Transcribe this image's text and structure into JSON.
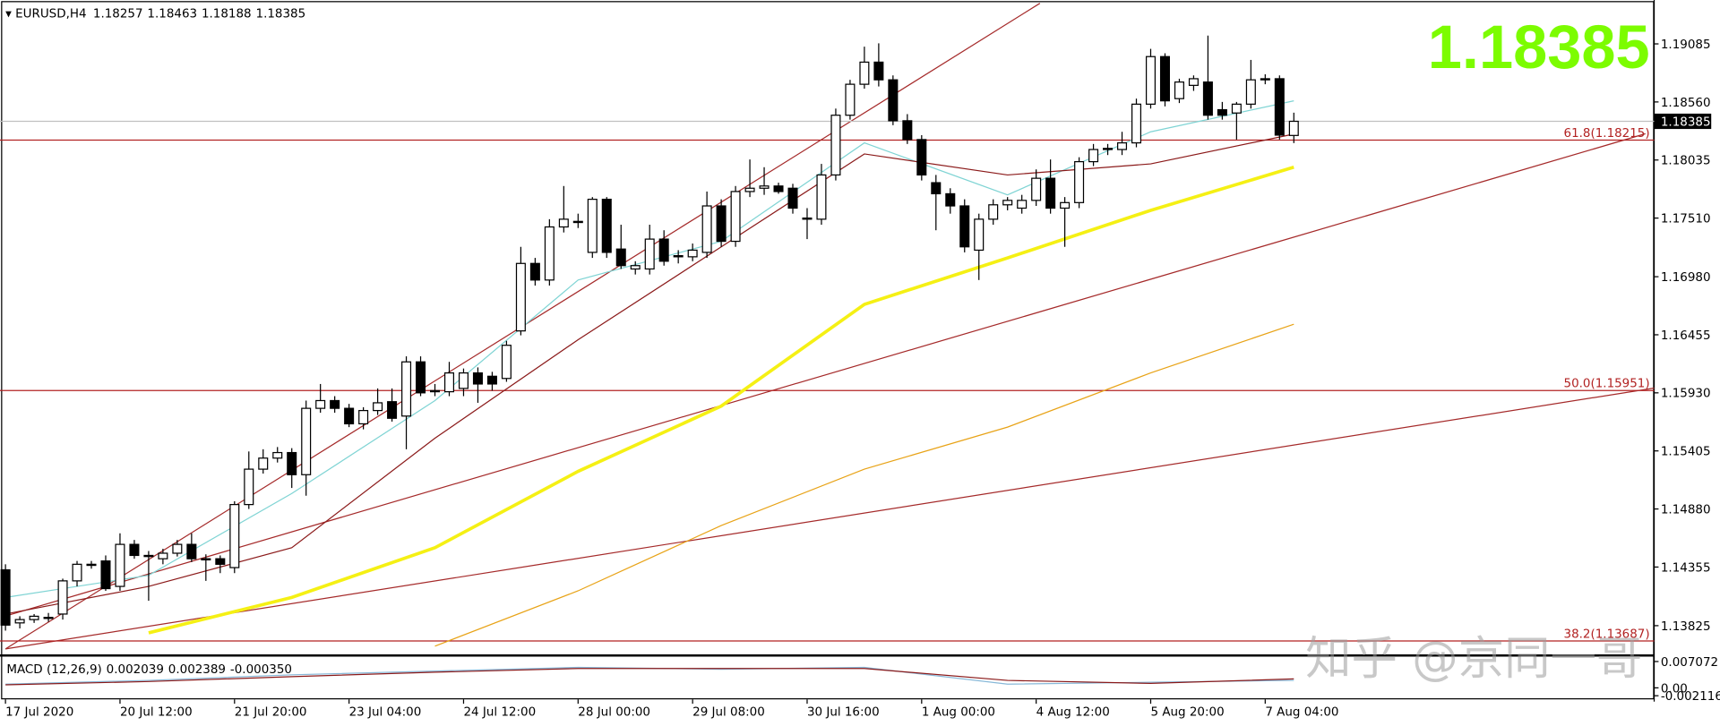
{
  "chart_data": {
    "type": "candlestick",
    "header": {
      "symbol": "EURUSD,H4"
    },
    "categories": [
      "17 Jul 2020",
      null,
      null,
      null,
      null,
      null,
      null,
      null,
      "20 Jul 12:00",
      null,
      null,
      null,
      null,
      null,
      null,
      null,
      "21 Jul 20:00",
      null,
      null,
      null,
      null,
      null,
      null,
      null,
      "23 Jul 04:00",
      null,
      null,
      null,
      null,
      null,
      null,
      null,
      "24 Jul 12:00",
      null,
      null,
      null,
      null,
      null,
      null,
      null,
      "28 Jul 00:00",
      null,
      null,
      null,
      null,
      null,
      null,
      null,
      "29 Jul 08:00",
      null,
      null,
      null,
      null,
      null,
      null,
      null,
      "30 Jul 16:00",
      null,
      null,
      null,
      null,
      null,
      null,
      null,
      "1 Aug 00:00",
      null,
      null,
      null,
      null,
      null,
      null,
      null,
      "4 Aug 12:00",
      null,
      null,
      null,
      null,
      null,
      null,
      null,
      "5 Aug 20:00",
      null,
      null,
      null,
      null,
      null,
      null,
      null,
      "7 Aug 04:00",
      null,
      null
    ],
    "candles": [
      [
        1.1433,
        1.1438,
        1.1378,
        1.1383
      ],
      [
        1.1385,
        1.1391,
        1.138,
        1.1388
      ],
      [
        1.1388,
        1.1393,
        1.1385,
        1.1391
      ],
      [
        1.139,
        1.1394,
        1.1386,
        1.139
      ],
      [
        1.1393,
        1.1425,
        1.1388,
        1.1423
      ],
      [
        1.1423,
        1.1441,
        1.1418,
        1.1438
      ],
      [
        1.1438,
        1.1441,
        1.1434,
        1.1437
      ],
      [
        1.1441,
        1.1446,
        1.1414,
        1.1416
      ],
      [
        1.1418,
        1.1466,
        1.1414,
        1.1456
      ],
      [
        1.1456,
        1.146,
        1.1443,
        1.1446
      ],
      [
        1.1446,
        1.145,
        1.1405,
        1.1445
      ],
      [
        1.1443,
        1.1452,
        1.1438,
        1.1448
      ],
      [
        1.1448,
        1.146,
        1.1445,
        1.1456
      ],
      [
        1.1456,
        1.1466,
        1.144,
        1.1443
      ],
      [
        1.1443,
        1.1447,
        1.1423,
        1.1442
      ],
      [
        1.1443,
        1.1446,
        1.143,
        1.1438
      ],
      [
        1.1435,
        1.1495,
        1.143,
        1.1492
      ],
      [
        1.1492,
        1.154,
        1.1488,
        1.1524
      ],
      [
        1.1524,
        1.1542,
        1.152,
        1.1534
      ],
      [
        1.1534,
        1.1544,
        1.153,
        1.1539
      ],
      [
        1.1539,
        1.1543,
        1.1507,
        1.1519
      ],
      [
        1.1519,
        1.1586,
        1.15,
        1.1579
      ],
      [
        1.1579,
        1.1601,
        1.1575,
        1.1586
      ],
      [
        1.1586,
        1.159,
        1.1575,
        1.1579
      ],
      [
        1.1579,
        1.1583,
        1.1562,
        1.1565
      ],
      [
        1.1565,
        1.158,
        1.156,
        1.1577
      ],
      [
        1.1577,
        1.1597,
        1.1573,
        1.1584
      ],
      [
        1.1585,
        1.1597,
        1.1567,
        1.157
      ],
      [
        1.1572,
        1.1626,
        1.1542,
        1.1621
      ],
      [
        1.1621,
        1.1626,
        1.159,
        1.1593
      ],
      [
        1.1594,
        1.1601,
        1.159,
        1.1595
      ],
      [
        1.1594,
        1.1621,
        1.159,
        1.1611
      ],
      [
        1.1597,
        1.1615,
        1.159,
        1.1611
      ],
      [
        1.1611,
        1.1616,
        1.1584,
        1.1601
      ],
      [
        1.1608,
        1.1612,
        1.1595,
        1.1601
      ],
      [
        1.1606,
        1.164,
        1.1603,
        1.1636
      ],
      [
        1.1649,
        1.1725,
        1.1645,
        1.171
      ],
      [
        1.171,
        1.1715,
        1.169,
        1.1695
      ],
      [
        1.1695,
        1.175,
        1.169,
        1.1743
      ],
      [
        1.1743,
        1.178,
        1.1738,
        1.175
      ],
      [
        1.1747,
        1.1755,
        1.1742,
        1.1748
      ],
      [
        1.172,
        1.177,
        1.1715,
        1.1768
      ],
      [
        1.1768,
        1.177,
        1.1715,
        1.172
      ],
      [
        1.1723,
        1.1745,
        1.1705,
        1.1708
      ],
      [
        1.1705,
        1.1712,
        1.17,
        1.1708
      ],
      [
        1.1705,
        1.1745,
        1.17,
        1.1732
      ],
      [
        1.1732,
        1.174,
        1.1708,
        1.1712
      ],
      [
        1.1716,
        1.1722,
        1.171,
        1.1717
      ],
      [
        1.1716,
        1.1728,
        1.1712,
        1.1722
      ],
      [
        1.172,
        1.1775,
        1.1715,
        1.1762
      ],
      [
        1.1762,
        1.1768,
        1.1725,
        1.173
      ],
      [
        1.173,
        1.178,
        1.1725,
        1.1775
      ],
      [
        1.1775,
        1.1804,
        1.177,
        1.1778
      ],
      [
        1.1778,
        1.1797,
        1.1772,
        1.178
      ],
      [
        1.178,
        1.1783,
        1.1773,
        1.1775
      ],
      [
        1.1778,
        1.1782,
        1.1755,
        1.176
      ],
      [
        1.175,
        1.176,
        1.1732,
        1.1751
      ],
      [
        1.175,
        1.18,
        1.1745,
        1.179
      ],
      [
        1.179,
        1.185,
        1.1785,
        1.1844
      ],
      [
        1.1844,
        1.1876,
        1.184,
        1.1872
      ],
      [
        1.1872,
        1.1906,
        1.1868,
        1.1892
      ],
      [
        1.1892,
        1.1909,
        1.187,
        1.1876
      ],
      [
        1.1876,
        1.188,
        1.1835,
        1.1839
      ],
      [
        1.1839,
        1.1845,
        1.1818,
        1.1822
      ],
      [
        1.1822,
        1.1826,
        1.1785,
        1.179
      ],
      [
        1.1783,
        1.179,
        1.174,
        1.1773
      ],
      [
        1.1773,
        1.1778,
        1.1755,
        1.1762
      ],
      [
        1.1762,
        1.1768,
        1.172,
        1.1725
      ],
      [
        1.1722,
        1.1755,
        1.1695,
        1.175
      ],
      [
        1.175,
        1.1768,
        1.1745,
        1.1763
      ],
      [
        1.1763,
        1.177,
        1.1758,
        1.1767
      ],
      [
        1.176,
        1.1772,
        1.1755,
        1.1767
      ],
      [
        1.1767,
        1.1795,
        1.1762,
        1.1787
      ],
      [
        1.1787,
        1.1804,
        1.1755,
        1.176
      ],
      [
        1.176,
        1.177,
        1.1725,
        1.1765
      ],
      [
        1.1765,
        1.1806,
        1.176,
        1.1802
      ],
      [
        1.1802,
        1.1818,
        1.1798,
        1.1813
      ],
      [
        1.1813,
        1.1818,
        1.1808,
        1.1814
      ],
      [
        1.1813,
        1.1829,
        1.1808,
        1.1819
      ],
      [
        1.1819,
        1.1859,
        1.1815,
        1.1854
      ],
      [
        1.1854,
        1.1904,
        1.185,
        1.1897
      ],
      [
        1.1897,
        1.19,
        1.1852,
        1.1857
      ],
      [
        1.1859,
        1.1877,
        1.1855,
        1.1874
      ],
      [
        1.1871,
        1.188,
        1.1866,
        1.1877
      ],
      [
        1.1874,
        1.1916,
        1.184,
        1.1844
      ],
      [
        1.1849,
        1.1856,
        1.184,
        1.1844
      ],
      [
        1.1846,
        1.1856,
        1.1822,
        1.1854
      ],
      [
        1.1854,
        1.1894,
        1.185,
        1.1876
      ],
      [
        1.1876,
        1.1881,
        1.1872,
        1.1877
      ],
      [
        1.1877,
        1.188,
        1.1822,
        1.1826
      ],
      [
        1.18257,
        1.18463,
        1.18188,
        1.18385
      ]
    ],
    "bull_color": "#ffffff",
    "bear_color": "#000000",
    "overlays": [
      {
        "color": "#7fd4d4",
        "width": 1,
        "x": [
          0,
          10,
          20,
          30,
          40,
          50,
          60,
          70,
          80,
          90
        ],
        "values": [
          1.1408,
          1.1428,
          1.1502,
          1.1586,
          1.1695,
          1.173,
          1.1819,
          1.1772,
          1.1829,
          1.1857
        ]
      },
      {
        "color": "#8b1a1a",
        "width": 1,
        "x": [
          0,
          10,
          20,
          30,
          40,
          50,
          60,
          70,
          80,
          90
        ],
        "values": [
          1.1393,
          1.1418,
          1.1453,
          1.1552,
          1.1641,
          1.1725,
          1.1809,
          1.179,
          1.18,
          1.1827
        ]
      },
      {
        "color": "#f5f014",
        "width": 3,
        "x": [
          10,
          20,
          30,
          40,
          50,
          60,
          70,
          80,
          90
        ],
        "values": [
          1.1376,
          1.1408,
          1.1453,
          1.1522,
          1.1581,
          1.1673,
          1.1715,
          1.1758,
          1.1797
        ]
      },
      {
        "color": "#e8a317",
        "width": 1,
        "x": [
          30,
          40,
          50,
          60,
          70,
          80,
          90
        ],
        "values": [
          1.1364,
          1.1414,
          1.1473,
          1.1524,
          1.1562,
          1.1611,
          1.1655
        ]
      }
    ],
    "ylim": [
      1.13565,
      1.19452
    ],
    "yticks": [
      1.19085,
      {
        "value": 1.1856,
        "label": "1.18560"
      },
      1.18035,
      {
        "value": 1.1751,
        "label": "1.17510"
      },
      {
        "value": 1.1698,
        "label": "1.16980"
      },
      1.16455,
      {
        "value": 1.1593,
        "label": "1.15930"
      },
      1.15405,
      {
        "value": 1.1488,
        "label": "1.14880"
      },
      1.14355,
      1.13825
    ],
    "fib_levels": [
      {
        "value": 1.18215,
        "label": "61.8(1.18215)"
      },
      {
        "value": 1.15951,
        "label": "50.0(1.15951)"
      },
      {
        "value": 1.13687,
        "label": "38.2(1.13687)"
      }
    ],
    "fib_color": "#b22222",
    "last_price": 1.18385,
    "macd": {
      "label": "MACD (12,26,9)",
      "readouts": [
        0.002039,
        0.002389,
        {
          "value": -0.00035,
          "label": "-0.000350"
        }
      ],
      "ylim": [
        -0.0028,
        0.0078
      ],
      "yticks": [
        0.007072,
        {
          "value": 0,
          "label": "0.00"
        },
        -0.002116
      ],
      "x": [
        0,
        10,
        20,
        30,
        40,
        50,
        60,
        70,
        80,
        90
      ],
      "series": [
        {
          "color": "#87b8d8",
          "values": [
            0.001,
            0.002,
            0.0035,
            0.0045,
            0.0055,
            0.005,
            0.0055,
            0.001,
            0.0015,
            0.002
          ]
        },
        {
          "color": "#8b1a1a",
          "values": [
            0.0008,
            0.0017,
            0.003,
            0.0042,
            0.0052,
            0.0052,
            0.0052,
            0.002,
            0.0012,
            0.0024
          ]
        }
      ]
    },
    "watermark": "知乎 @京同一哥"
  }
}
